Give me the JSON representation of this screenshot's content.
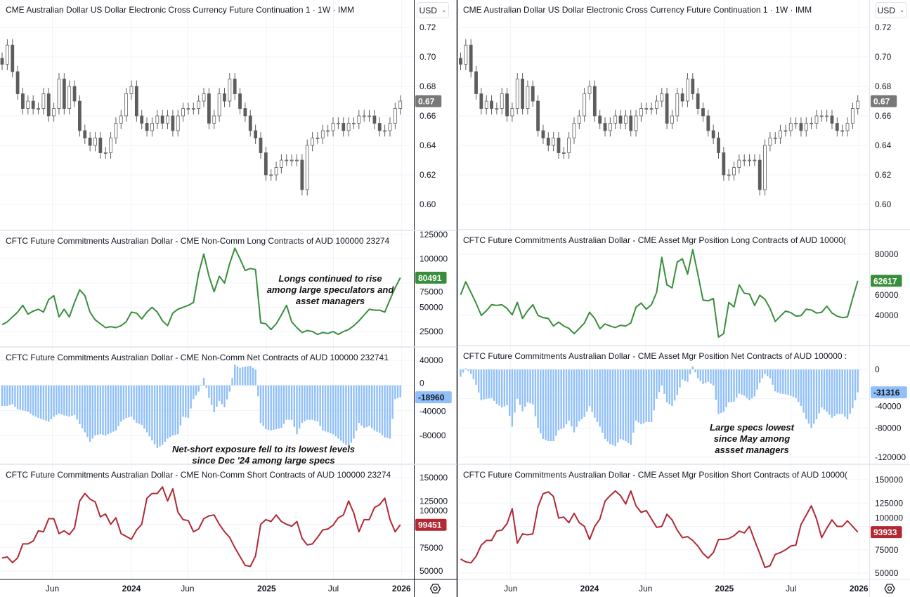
{
  "chart_data": {
    "type": "candlestick + line + bar (multi-pane)",
    "dates": [
      "2023-01-16",
      "2023-01-30",
      "2023-02-13",
      "2023-02-27",
      "2023-03-13",
      "2023-03-27",
      "2023-04-10",
      "2023-04-24",
      "2023-05-08",
      "2023-05-22",
      "2023-06-05",
      "2023-06-19",
      "2023-07-03",
      "2023-07-17",
      "2023-07-31",
      "2023-08-14",
      "2023-08-28",
      "2023-09-11",
      "2023-09-25",
      "2023-10-09",
      "2023-10-23",
      "2023-11-06",
      "2023-11-20",
      "2023-12-04",
      "2023-12-18",
      "2024-01-01",
      "2024-01-15",
      "2024-01-29",
      "2024-02-12",
      "2024-02-26",
      "2024-03-11",
      "2024-03-25",
      "2024-04-08",
      "2024-04-22",
      "2024-05-06",
      "2024-05-20",
      "2024-06-03",
      "2024-06-17",
      "2024-07-01",
      "2024-07-15",
      "2024-07-29",
      "2024-08-12",
      "2024-08-26",
      "2024-09-09",
      "2024-09-23",
      "2024-10-07",
      "2024-10-21",
      "2024-11-04",
      "2024-11-18",
      "2024-12-02",
      "2024-12-16",
      "2024-12-30",
      "2025-01-13",
      "2025-01-27",
      "2025-02-10",
      "2025-02-24",
      "2025-03-10",
      "2025-03-24",
      "2025-04-07",
      "2025-04-21",
      "2025-05-05",
      "2025-05-19",
      "2025-06-02",
      "2025-06-16",
      "2025-06-30",
      "2025-07-14",
      "2025-07-28",
      "2025-08-11",
      "2025-08-25",
      "2025-09-08",
      "2025-09-22",
      "2025-10-06",
      "2025-10-20",
      "2025-11-03",
      "2025-11-17",
      "2025-12-01",
      "2025-12-15",
      "2025-12-29"
    ],
    "x_ticks": [
      {
        "label": "Jun",
        "date": "2023-06-01"
      },
      {
        "label": "2024",
        "date": "2024-01-01"
      },
      {
        "label": "Jun",
        "date": "2024-06-01"
      },
      {
        "label": "2025",
        "date": "2025-01-01"
      },
      {
        "label": "Jul",
        "date": "2025-07-01"
      },
      {
        "label": "2026",
        "date": "2026-01-01"
      }
    ],
    "price": {
      "title": "CME Australian Dollar US Dollar Electronic Cross Currency Future Continuation 1 · 1W · IMM",
      "currency": "USD",
      "last_label": "0.67",
      "color": "#5d5d5d",
      "badge_color": "#787878",
      "yticks": [
        "0.72",
        "0.70",
        "0.68",
        "0.66",
        "0.64",
        "0.62",
        "0.60"
      ],
      "close": [
        0.695,
        0.708,
        0.69,
        0.675,
        0.665,
        0.67,
        0.665,
        0.665,
        0.675,
        0.66,
        0.665,
        0.685,
        0.665,
        0.68,
        0.67,
        0.65,
        0.645,
        0.64,
        0.645,
        0.635,
        0.635,
        0.645,
        0.655,
        0.66,
        0.675,
        0.68,
        0.66,
        0.655,
        0.65,
        0.655,
        0.66,
        0.655,
        0.66,
        0.65,
        0.66,
        0.665,
        0.665,
        0.665,
        0.67,
        0.675,
        0.655,
        0.66,
        0.675,
        0.67,
        0.685,
        0.675,
        0.665,
        0.66,
        0.65,
        0.645,
        0.635,
        0.62,
        0.62,
        0.625,
        0.63,
        0.63,
        0.63,
        0.63,
        0.61,
        0.64,
        0.645,
        0.645,
        0.65,
        0.65,
        0.655,
        0.655,
        0.65,
        0.655,
        0.655,
        0.66,
        0.66,
        0.66,
        0.655,
        0.65,
        0.65,
        0.655,
        0.665,
        0.67
      ]
    },
    "left": {
      "long": {
        "title": "CFTC Future Commitments Australian Dollar - CME Non-Comm Long Contracts of AUD 100000 23274",
        "last_label": "80491",
        "color": "#388e3c",
        "yticks": [
          125000,
          100000,
          75000,
          50000,
          25000
        ],
        "values": [
          32000,
          35000,
          40000,
          45000,
          52000,
          43000,
          46000,
          48000,
          45000,
          58000,
          62000,
          40000,
          48000,
          40000,
          55000,
          68000,
          62000,
          45000,
          37000,
          33000,
          29000,
          30000,
          29000,
          31000,
          35000,
          45000,
          44000,
          38000,
          45000,
          50000,
          45000,
          36000,
          31000,
          44000,
          48000,
          50000,
          52000,
          55000,
          85000,
          105000,
          82000,
          66000,
          82000,
          75000,
          95000,
          111000,
          100000,
          88000,
          90000,
          89000,
          34000,
          33000,
          27000,
          33000,
          42000,
          52000,
          35000,
          29000,
          24000,
          26000,
          25000,
          22000,
          24000,
          23000,
          25000,
          22000,
          25000,
          27000,
          31000,
          36000,
          42000,
          48000,
          47000,
          47000,
          45000,
          58000,
          70000,
          80491
        ]
      },
      "net": {
        "title": "CFTC Future Commitments Australian Dollar - CME Non-Comm Net Contracts of AUD 100000 232741",
        "last_label": "-18960",
        "color": "#90bff9",
        "yticks": [
          40000,
          0,
          -40000,
          -80000
        ],
        "values": [
          -33000,
          -33000,
          -30000,
          -38000,
          -40000,
          -42000,
          -48000,
          -52000,
          -55000,
          -58000,
          -50000,
          -45000,
          -48000,
          -50000,
          -47000,
          -62000,
          -75000,
          -90000,
          -80000,
          -78000,
          -80000,
          -76000,
          -72000,
          -58000,
          -52000,
          -50000,
          -60000,
          -63000,
          -75000,
          -88000,
          -100000,
          -95000,
          -85000,
          -80000,
          -78000,
          -50000,
          -52000,
          -22000,
          -10000,
          12000,
          -20000,
          -43000,
          -25000,
          -35000,
          -10000,
          33000,
          28000,
          30000,
          31000,
          25000,
          -60000,
          -70000,
          -72000,
          -70000,
          -68000,
          -55000,
          -55000,
          -78000,
          -60000,
          -55000,
          -55000,
          -58000,
          -72000,
          -75000,
          -78000,
          -85000,
          -92000,
          -98000,
          -85000,
          -60000,
          -68000,
          -65000,
          -72000,
          -76000,
          -83000,
          -85000,
          -22000,
          -18960
        ]
      },
      "short": {
        "title": "CFTC Future Commitments Australian Dollar - CME Non-Comm Short Contracts of AUD 100000 23274",
        "last_label": "99451",
        "color": "#b22833",
        "yticks": [
          150000,
          125000,
          100000,
          75000,
          50000
        ],
        "values": [
          64000,
          65000,
          59000,
          64000,
          79000,
          79000,
          82000,
          93000,
          92000,
          106000,
          106000,
          90000,
          93000,
          89000,
          96000,
          125000,
          133000,
          127000,
          124000,
          108000,
          111000,
          100000,
          107000,
          90000,
          87000,
          84000,
          94000,
          100000,
          128000,
          133000,
          133000,
          140000,
          125000,
          138000,
          113000,
          105000,
          104000,
          92000,
          95000,
          106000,
          109000,
          110000,
          100000,
          92000,
          86000,
          75000,
          65500,
          56000,
          55000,
          66000,
          100000,
          105000,
          103000,
          110000,
          103000,
          100000,
          98000,
          103000,
          85000,
          78000,
          79000,
          86000,
          94000,
          95000,
          99000,
          107000,
          110000,
          125000,
          112000,
          92000,
          105000,
          105000,
          118000,
          121000,
          128000,
          105000,
          92000,
          99451
        ]
      }
    },
    "right": {
      "long": {
        "title": "CFTC Future Commitments Australian Dollar - CME Asset Mgr Position Long Contracts of AUD 10000(",
        "last_label": "62617",
        "color": "#388e3c",
        "yticks": [
          80000,
          60000,
          40000
        ],
        "values": [
          53500,
          62000,
          55000,
          48000,
          40000,
          43000,
          47000,
          46500,
          47000,
          44500,
          40300,
          48500,
          38000,
          43000,
          47000,
          40000,
          38500,
          38000,
          33000,
          35600,
          33000,
          31500,
          28000,
          31400,
          35000,
          42000,
          38000,
          31200,
          34400,
          33000,
          32000,
          33500,
          33000,
          35000,
          45400,
          48000,
          44000,
          47000,
          55000,
          78000,
          60000,
          58000,
          75000,
          77000,
          67000,
          83000,
          67000,
          50000,
          49500,
          51000,
          25800,
          28000,
          48500,
          45500,
          60000,
          54500,
          54000,
          46500,
          53200,
          50500,
          44500,
          36000,
          39500,
          42800,
          41800,
          39500,
          39800,
          44000,
          43500,
          41500,
          42000,
          46000,
          41500,
          39500,
          38500,
          39000,
          51000,
          62617
        ]
      },
      "net": {
        "title": "CFTC Future Commitments Australian Dollar - CME Asset Mgr Position Net Contracts of AUD 100000 :",
        "last_label": "-31316",
        "color": "#90bff9",
        "yticks": [
          0,
          -40000,
          -80000,
          -120000
        ],
        "values": [
          -10000,
          1500,
          -6000,
          -21000,
          -42000,
          -40000,
          -39000,
          -47000,
          -52000,
          -49000,
          -78000,
          -40000,
          -57000,
          -45000,
          -48000,
          -80000,
          -95000,
          -98000,
          -98000,
          -83000,
          -80000,
          -70000,
          -86000,
          -71000,
          -65000,
          -50000,
          -66000,
          -78000,
          -95000,
          -102000,
          -105000,
          -95000,
          -98000,
          -103000,
          -70000,
          -75000,
          -72000,
          -72000,
          -40000,
          -22000,
          -45000,
          -50000,
          -35000,
          -14000,
          -17000,
          4000,
          -12000,
          -20000,
          -17000,
          -22000,
          -61000,
          -58000,
          -45000,
          -44000,
          -33000,
          -36000,
          -42000,
          -37000,
          -18000,
          -6000,
          -12000,
          -30000,
          -33000,
          -34000,
          -36000,
          -39000,
          -50000,
          -68000,
          -80000,
          -68000,
          -52000,
          -58000,
          -66000,
          -61000,
          -61000,
          -68000,
          -53000,
          -31316
        ]
      },
      "short": {
        "title": "CFTC Future Commitments Australian Dollar - CME Asset Mgr Position Short Contracts of AUD 10000(",
        "last_label": "93933",
        "color": "#b22833",
        "yticks": [
          150000,
          125000,
          100000,
          75000,
          50000
        ],
        "values": [
          65000,
          62000,
          61000,
          68000,
          80000,
          85000,
          85000,
          95000,
          96000,
          103000,
          119000,
          82000,
          92000,
          91000,
          92000,
          121000,
          135000,
          137000,
          132000,
          109000,
          110000,
          104000,
          114000,
          104000,
          100000,
          86000,
          100000,
          108000,
          127000,
          133000,
          138000,
          133000,
          124000,
          138000,
          122000,
          115000,
          117000,
          108000,
          99000,
          100000,
          113000,
          107000,
          96000,
          88000,
          89000,
          85000,
          79000,
          71000,
          66000,
          72000,
          86000,
          86000,
          87000,
          90000,
          95000,
          93000,
          100000,
          85000,
          71000,
          56000,
          58000,
          70000,
          72000,
          75000,
          79000,
          80000,
          102000,
          112000,
          122000,
          108000,
          88000,
          98000,
          107000,
          100000,
          100000,
          106000,
          100000,
          93933
        ]
      }
    },
    "annotations": {
      "longs": [
        "Longs continued to rise",
        "among large speculators and",
        "asset managers"
      ],
      "net_short": [
        "Net-short exposure fell to its lowest levels",
        "since Dec '24 among large specs"
      ],
      "asset_mgr": [
        "Large specs lowest",
        "since May among",
        "assset managers"
      ]
    }
  },
  "toolbar": {
    "currency_label": "USD",
    "settings_icon": "gear-icon"
  }
}
